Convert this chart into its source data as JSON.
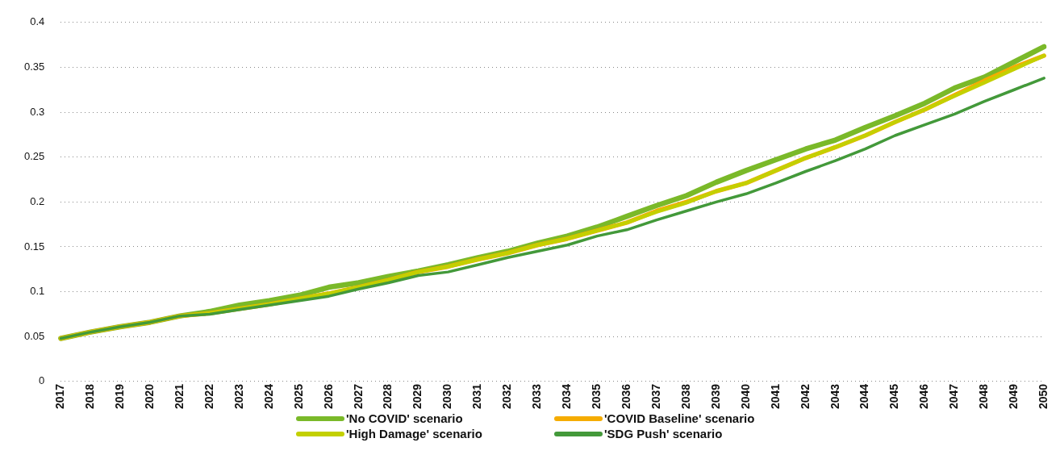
{
  "chart_data": {
    "type": "line",
    "categories": [
      "2017",
      "2018",
      "2019",
      "2020",
      "2021",
      "2022",
      "2023",
      "2024",
      "2025",
      "2026",
      "2027",
      "2028",
      "2029",
      "2030",
      "2031",
      "2032",
      "2033",
      "2034",
      "2035",
      "2036",
      "2037",
      "2038",
      "2039",
      "2040",
      "2041",
      "2042",
      "2043",
      "2044",
      "2045",
      "2046",
      "2047",
      "2048",
      "2049",
      "2050"
    ],
    "series": [
      {
        "name": "'No COVID' scenario",
        "color": "#7ab929",
        "values": [
          0.048,
          0.055,
          0.061,
          0.066,
          0.073,
          0.078,
          0.085,
          0.09,
          0.096,
          0.105,
          0.11,
          0.117,
          0.123,
          0.13,
          0.138,
          0.145,
          0.154,
          0.162,
          0.172,
          0.184,
          0.196,
          0.207,
          0.222,
          0.235,
          0.247,
          0.259,
          0.269,
          0.283,
          0.296,
          0.31,
          0.327,
          0.339,
          0.356,
          0.373
        ]
      },
      {
        "name": "'COVID Baseline' scenario",
        "color": "#f5ac00",
        "values": [
          0.048,
          0.055,
          0.061,
          0.066,
          0.073,
          0.076,
          0.081,
          0.086,
          0.092,
          0.098,
          0.105,
          0.113,
          0.122,
          0.128,
          0.136,
          0.143,
          0.152,
          0.159,
          0.168,
          0.177,
          0.19,
          0.2,
          0.212,
          0.221,
          0.235,
          0.249,
          0.261,
          0.274,
          0.289,
          0.303,
          0.319,
          0.335,
          0.35,
          0.363
        ]
      },
      {
        "name": "'High Damage' scenario",
        "color": "#c3d000",
        "values": [
          0.048,
          0.055,
          0.061,
          0.066,
          0.073,
          0.076,
          0.081,
          0.086,
          0.092,
          0.098,
          0.105,
          0.113,
          0.122,
          0.128,
          0.136,
          0.143,
          0.152,
          0.159,
          0.168,
          0.177,
          0.189,
          0.199,
          0.212,
          0.221,
          0.235,
          0.249,
          0.261,
          0.274,
          0.289,
          0.303,
          0.318,
          0.333,
          0.348,
          0.363
        ]
      },
      {
        "name": "'SDG Push' scenario",
        "color": "#43993a",
        "values": [
          0.048,
          0.055,
          0.061,
          0.066,
          0.073,
          0.075,
          0.08,
          0.085,
          0.09,
          0.095,
          0.103,
          0.11,
          0.118,
          0.122,
          0.13,
          0.138,
          0.145,
          0.152,
          0.162,
          0.169,
          0.18,
          0.19,
          0.2,
          0.209,
          0.221,
          0.234,
          0.246,
          0.259,
          0.274,
          0.286,
          0.298,
          0.312,
          0.325,
          0.338
        ]
      }
    ],
    "ylim": [
      0,
      0.4
    ],
    "yticks": [
      0,
      0.05,
      0.1,
      0.15,
      0.2,
      0.25,
      0.3,
      0.35,
      0.4
    ],
    "grid": "y",
    "legend": "bottom",
    "marker": "none",
    "line_style": "solid"
  }
}
